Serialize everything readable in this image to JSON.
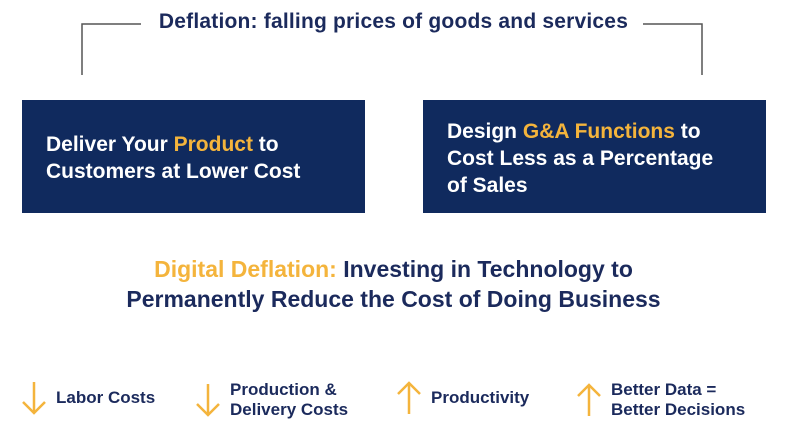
{
  "title": "Deflation: falling prices of goods and services",
  "box_left": {
    "line1_pre": "Deliver Your ",
    "line1_highlight": "Product",
    "line1_post": " to",
    "line2": "Customers at Lower Cost"
  },
  "box_right": {
    "line1_pre": "Design ",
    "line1_highlight": "G&A Functions",
    "line1_post": " to",
    "line2": "Cost Less as a Percentage",
    "line3": "of Sales"
  },
  "headline": {
    "highlight": "Digital Deflation:",
    "rest_line1": " Investing in Technology to",
    "line2": "Permanently Reduce the Cost of Doing Business"
  },
  "benefits": [
    {
      "label_line1": "Labor Costs",
      "label_line2": "",
      "direction": "down",
      "icon": "arrow-down-icon"
    },
    {
      "label_line1": "Production &",
      "label_line2": "Delivery Costs",
      "direction": "down",
      "icon": "arrow-down-icon"
    },
    {
      "label_line1": "Productivity",
      "label_line2": "",
      "direction": "up",
      "icon": "arrow-up-icon"
    },
    {
      "label_line1": "Better Data =",
      "label_line2": "Better Decisions",
      "direction": "up",
      "icon": "arrow-up-icon"
    }
  ],
  "colors": {
    "navy": "#102a5e",
    "accent": "#f4b43c",
    "text": "#1b2a5c"
  }
}
